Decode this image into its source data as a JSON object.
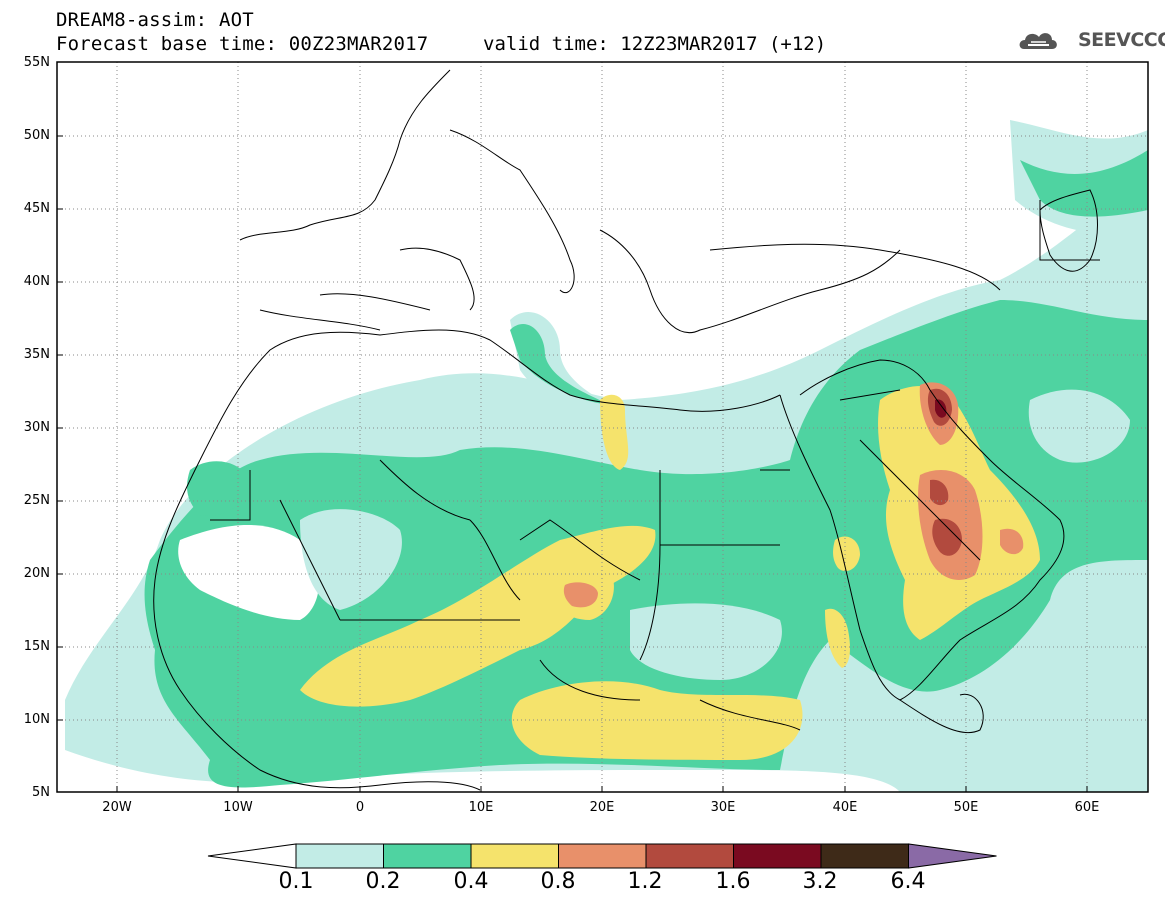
{
  "title": {
    "line1": "DREAM8-assim: AOT",
    "line2": "Forecast base time: 00Z23MAR2017",
    "valid": "valid time: 12Z23MAR2017 (+12)"
  },
  "logo": {
    "text": "SEEVCCC",
    "icon": "cloud-logo-icon"
  },
  "axes": {
    "lat_labels": [
      "55N",
      "50N",
      "45N",
      "40N",
      "35N",
      "30N",
      "25N",
      "20N",
      "15N",
      "10N",
      "5N"
    ],
    "lon_labels": [
      "20W",
      "10W",
      "0",
      "10E",
      "20E",
      "30E",
      "40E",
      "50E",
      "60E"
    ],
    "lat_range": [
      5,
      55
    ],
    "lon_range": [
      -25,
      65
    ],
    "grid": "dotted"
  },
  "legend": {
    "labels": [
      "0.1",
      "0.2",
      "0.4",
      "0.8",
      "1.2",
      "1.6",
      "3.2",
      "6.4"
    ],
    "colors": [
      "#ffffff",
      "#c2ece6",
      "#4fd3a1",
      "#f5e36c",
      "#e8906a",
      "#b24a3e",
      "#7a0a20",
      "#3e2a18",
      "#8a6aa6"
    ],
    "placement": "bottom"
  },
  "layers": {
    "field": "AOT",
    "classes": [
      {
        "range": "0.1-0.2",
        "color": "#c2ece6"
      },
      {
        "range": "0.2-0.4",
        "color": "#4fd3a1"
      },
      {
        "range": "0.4-0.8",
        "color": "#f5e36c"
      },
      {
        "range": "0.8-1.2",
        "color": "#e8906a"
      },
      {
        "range": "1.2-1.6",
        "color": "#b24a3e"
      },
      {
        "range": "1.6-3.2",
        "color": "#7a0a20"
      }
    ]
  }
}
